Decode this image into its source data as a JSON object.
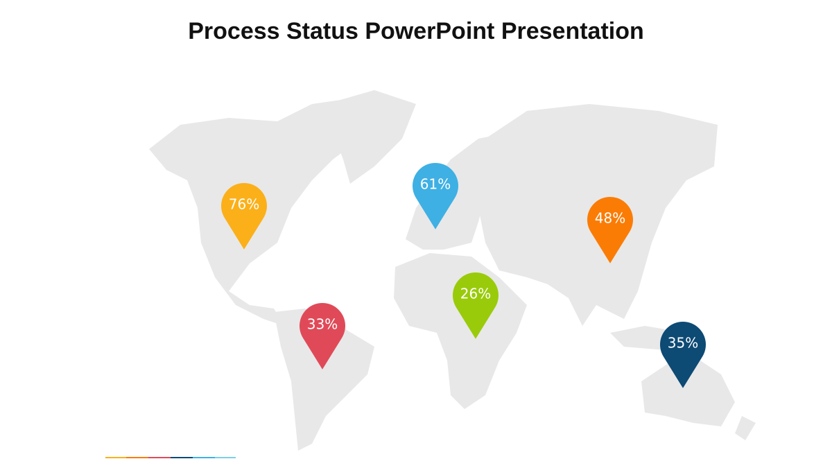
{
  "header": {
    "title": "Process Status PowerPoint Presentation"
  },
  "pins": [
    {
      "label": "76%",
      "color": "#fbb01a"
    },
    {
      "label": "33%",
      "color": "#e04a58"
    },
    {
      "label": "61%",
      "color": "#3eb0e4"
    },
    {
      "label": "26%",
      "color": "#99cb0a"
    },
    {
      "label": "48%",
      "color": "#fb7c05"
    },
    {
      "label": "35%",
      "color": "#0d4a74"
    }
  ]
}
